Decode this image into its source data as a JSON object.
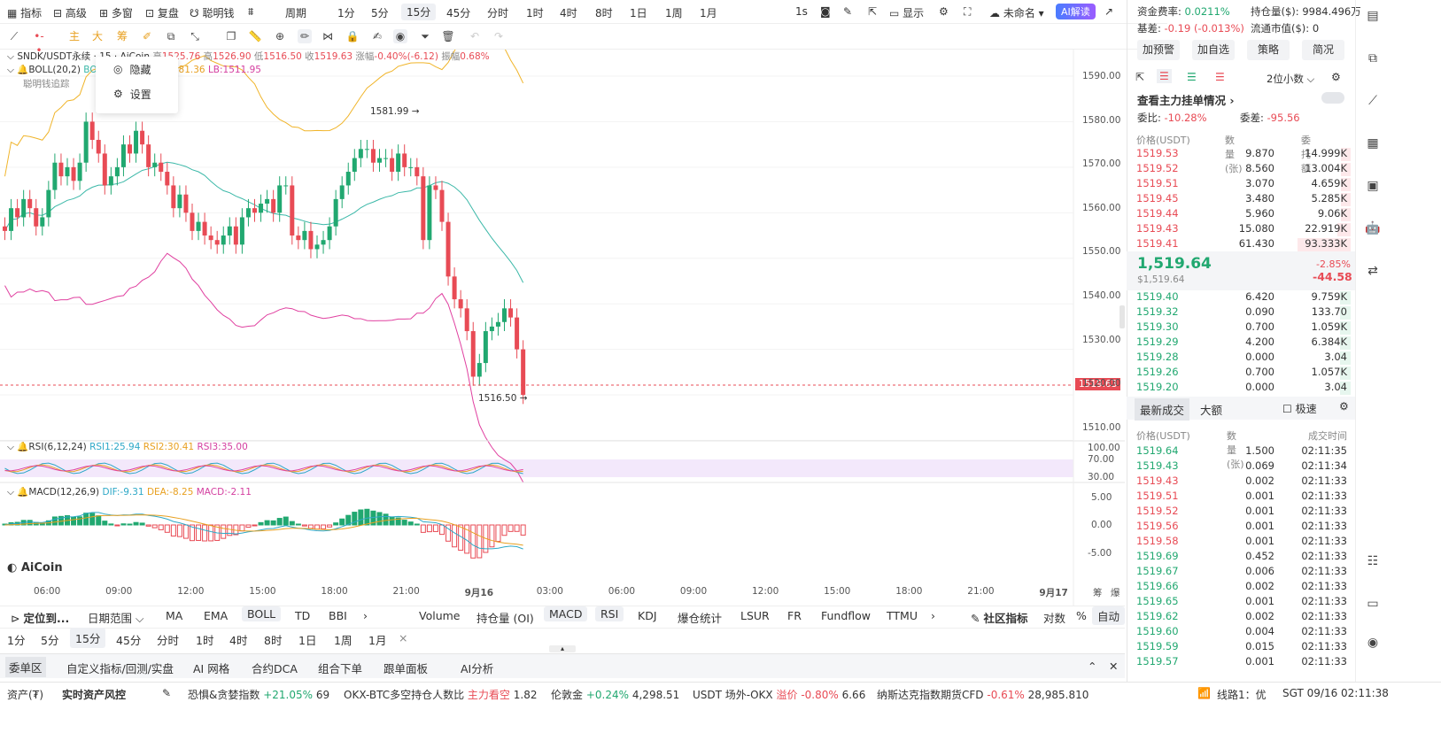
{
  "topbar": {
    "items": [
      "指标",
      "高级",
      "多窗",
      "复盘",
      "聪明钱"
    ],
    "period_label": "周期",
    "periods": [
      "1分",
      "5分",
      "15分",
      "45分",
      "分时",
      "1时",
      "4时",
      "8时",
      "1日",
      "1周",
      "1月"
    ],
    "active_period": "15分",
    "speed": "1s",
    "display": "显示",
    "unnamed": "未命名",
    "ai": "AI解读"
  },
  "toolbar": {
    "zhu": "主",
    "da": "大",
    "chou": "筹"
  },
  "chart": {
    "symbol_line": "SNDK/USDT永续 · 15 · AiCoin",
    "ohlc": {
      "open_label": "开",
      "open": "1525.76",
      "high_label": "高",
      "high": "1526.90",
      "low_label": "低",
      "low": "1516.50",
      "close_label": "收",
      "close": "1519.63",
      "change_label": "涨幅",
      "change": "-0.40%(-6.12)",
      "amp_label": "振幅",
      "amp": "0.68%"
    },
    "boll": {
      "label": "BOLL(20,2)",
      "mb": "BOLL:",
      "ub": "1581.36",
      "lb": "LB:1511.95"
    },
    "smart_money": "聪明钱追踪",
    "menu": {
      "hide": "隐藏",
      "settings": "设置"
    },
    "high_marker": "1581.99",
    "low_marker": "1516.50",
    "last_price": "1519.63",
    "y_labels": [
      "1590.00",
      "1580.00",
      "1570.00",
      "1560.00",
      "1550.00",
      "1540.00",
      "1530.00",
      "1520.00",
      "1510.00"
    ],
    "rsi": {
      "label": "RSI(6,12,24)",
      "r1": "RSI1:25.94",
      "r2": "RSI2:30.41",
      "r3": "RSI3:35.00",
      "levels": [
        "100.00",
        "70.00",
        "30.00"
      ]
    },
    "macd": {
      "label": "MACD(12,26,9)",
      "dif": "DIF:-9.31",
      "dea": "DEA:-8.25",
      "macd": "MACD:-2.11",
      "levels": [
        "5.00",
        "0.00",
        "-5.00"
      ]
    },
    "x_labels": [
      "06:00",
      "09:00",
      "12:00",
      "15:00",
      "18:00",
      "21:00",
      "9月16",
      "03:00",
      "06:00",
      "09:00",
      "12:00",
      "15:00",
      "18:00",
      "21:00",
      "9月17"
    ],
    "logo": "AiCoin",
    "corner": [
      "筹",
      "爆"
    ]
  },
  "bottom_tabs": {
    "locate": "定位到...",
    "date_range": "日期范围",
    "indicators": [
      "MA",
      "EMA",
      "BOLL",
      "TD",
      "BBI"
    ],
    "sub_indicators": [
      "Volume",
      "持仓量 (OI)",
      "MACD",
      "RSI",
      "KDJ",
      "爆仓统计",
      "LSUR",
      "FR",
      "Fundflow",
      "TTMU"
    ],
    "community": "社区指标",
    "log": "对数",
    "pct": "%",
    "auto": "自动"
  },
  "period_tabs": [
    "1分",
    "5分",
    "15分",
    "45分",
    "分时",
    "1时",
    "4时",
    "8时",
    "1日",
    "1周",
    "1月"
  ],
  "panel_tabs": [
    "委单区",
    "自定义指标/回测/实盘",
    "AI 网格",
    "合约DCA",
    "组合下单",
    "跟单面板",
    "AI分析"
  ],
  "status": {
    "assets": "资产(₮)",
    "risk": "实时资产风控",
    "fear": "恐惧&贪婪指数",
    "fear_chg": "+21.05%",
    "fear_val": "69",
    "okx": "OKX-BTC多空持仓人数比",
    "okx_tag": "主力看空",
    "okx_val": "1.82",
    "gold": "伦敦金",
    "gold_chg": "+0.24%",
    "gold_val": "4,298.51",
    "usdt": "USDT 场外-OKX",
    "usdt_tag": "溢价",
    "usdt_chg": "-0.80%",
    "usdt_val": "6.66",
    "nasdaq": "纳斯达克指数期货CFD",
    "nasdaq_chg": "-0.61%",
    "nasdaq_val": "28,985.810",
    "line": "线路1：优",
    "time": "SGT 09/16 02:11:38"
  },
  "right": {
    "funding_label": "资金费率:",
    "funding": "0.0211%",
    "oi_label": "持仓量($):",
    "oi": "9984.496万",
    "basis_label": "基差:",
    "basis": "-0.19 (-0.013%)",
    "mcap_label": "流通市值($):",
    "mcap": "0",
    "buttons": [
      "加预警",
      "加自选",
      "策略",
      "简况"
    ],
    "decimals": "2位小数",
    "main_orders": "查看主力挂单情况",
    "ratio_label": "委比:",
    "ratio": "-10.28%",
    "diff_label": "委差:",
    "diff": "-95.56",
    "head": [
      "价格(USDT)",
      "数量 (张)",
      "委托额"
    ],
    "asks": [
      [
        "1519.53",
        "9.870",
        "14.999K",
        0.16
      ],
      [
        "1519.52",
        "8.560",
        "13.004K",
        0.14
      ],
      [
        "1519.51",
        "3.070",
        "4.659K",
        0.05
      ],
      [
        "1519.45",
        "3.480",
        "5.285K",
        0.06
      ],
      [
        "1519.44",
        "5.960",
        "9.06K",
        0.1
      ],
      [
        "1519.43",
        "15.080",
        "22.919K",
        0.25
      ],
      [
        "1519.41",
        "61.430",
        "93.333K",
        1.0
      ]
    ],
    "last": "1,519.64",
    "last_usd": "$1,519.64",
    "last_pct": "-2.85%",
    "last_chg": "-44.58",
    "bids": [
      [
        "1519.40",
        "6.420",
        "9.759K"
      ],
      [
        "1519.32",
        "0.090",
        "133.70"
      ],
      [
        "1519.30",
        "0.700",
        "1.059K"
      ],
      [
        "1519.29",
        "4.200",
        "6.384K"
      ],
      [
        "1519.28",
        "0.000",
        "3.04"
      ],
      [
        "1519.26",
        "0.700",
        "1.057K"
      ],
      [
        "1519.20",
        "0.000",
        "3.04"
      ]
    ],
    "trade_tabs": [
      "最新成交",
      "大额"
    ],
    "fast": "极速",
    "trade_head": [
      "价格(USDT)",
      "数量(张)",
      "成交时间"
    ],
    "trades": [
      [
        "1519.64",
        "1.500",
        "02:11:35",
        "g"
      ],
      [
        "1519.43",
        "0.069",
        "02:11:34",
        "g"
      ],
      [
        "1519.43",
        "0.002",
        "02:11:33",
        "r"
      ],
      [
        "1519.51",
        "0.001",
        "02:11:33",
        "r"
      ],
      [
        "1519.52",
        "0.001",
        "02:11:33",
        "r"
      ],
      [
        "1519.56",
        "0.001",
        "02:11:33",
        "r"
      ],
      [
        "1519.58",
        "0.001",
        "02:11:33",
        "r"
      ],
      [
        "1519.69",
        "0.452",
        "02:11:33",
        "g"
      ],
      [
        "1519.67",
        "0.006",
        "02:11:33",
        "g"
      ],
      [
        "1519.66",
        "0.002",
        "02:11:33",
        "g"
      ],
      [
        "1519.65",
        "0.001",
        "02:11:33",
        "g"
      ],
      [
        "1519.62",
        "0.002",
        "02:11:33",
        "g"
      ],
      [
        "1519.60",
        "0.004",
        "02:11:33",
        "g"
      ],
      [
        "1519.59",
        "0.015",
        "02:11:33",
        "g"
      ],
      [
        "1519.57",
        "0.001",
        "02:11:33",
        "g"
      ]
    ]
  },
  "chart_data": {
    "type": "candlestick",
    "symbol": "SNDK/USDT",
    "ylim": [
      1505,
      1595
    ],
    "closes": [
      1556,
      1561,
      1559,
      1563,
      1561,
      1557,
      1559,
      1565,
      1571,
      1568,
      1570,
      1567,
      1571,
      1580,
      1576,
      1573,
      1566,
      1568,
      1570,
      1575,
      1573,
      1578,
      1575,
      1570,
      1571,
      1569,
      1566,
      1561,
      1564,
      1560,
      1556,
      1558,
      1555,
      1554,
      1553,
      1555,
      1557,
      1553,
      1559,
      1561,
      1560,
      1562,
      1563,
      1560,
      1566,
      1566,
      1555,
      1554,
      1556,
      1552,
      1553,
      1554,
      1557,
      1563,
      1566,
      1569,
      1572,
      1574,
      1574,
      1571,
      1572,
      1572,
      1569,
      1573,
      1570,
      1570,
      1568,
      1554,
      1566,
      1565,
      1558,
      1546,
      1541,
      1539,
      1534,
      1524,
      1527,
      1534,
      1535,
      1536,
      1539,
      1537,
      1530,
      1520
    ],
    "rsi_level": [
      30,
      70
    ],
    "macd_hist_sign": "negative at end"
  }
}
